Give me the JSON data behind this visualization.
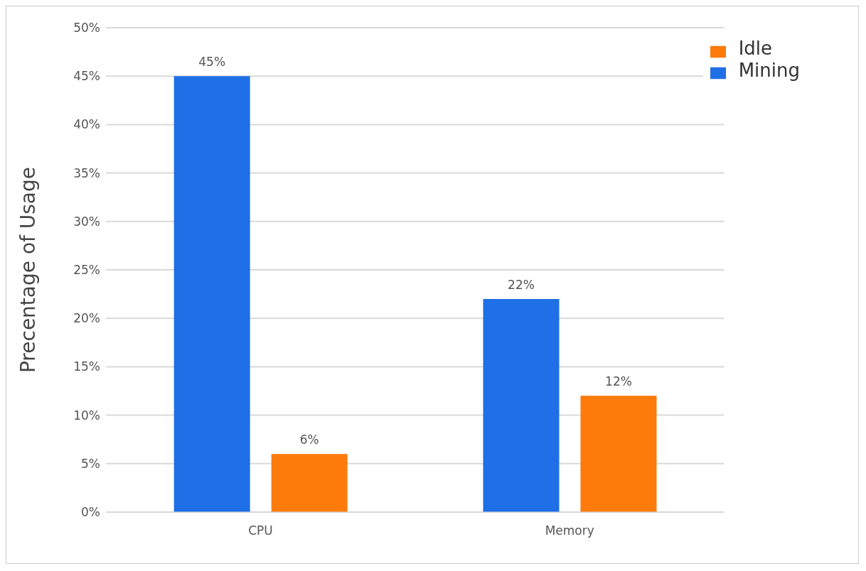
{
  "chart_data": {
    "type": "bar",
    "ylabel": "Precentage of Usage",
    "categories": [
      "CPU",
      "Memory"
    ],
    "series": [
      {
        "name": "Mining",
        "color": "#1f6fe6",
        "values": [
          45,
          22
        ],
        "value_labels": [
          "45%",
          "22%"
        ]
      },
      {
        "name": "Idle",
        "color": "#fc7b0b",
        "values": [
          6,
          12
        ],
        "value_labels": [
          "6%",
          "12%"
        ]
      }
    ],
    "ylim": [
      0,
      50
    ],
    "yticks": [
      {
        "value": 0,
        "label": "0%"
      },
      {
        "value": 5,
        "label": "5%"
      },
      {
        "value": 10,
        "label": "10%"
      },
      {
        "value": 15,
        "label": "15%"
      },
      {
        "value": 20,
        "label": "20%"
      },
      {
        "value": 25,
        "label": "25%"
      },
      {
        "value": 30,
        "label": "30%"
      },
      {
        "value": 35,
        "label": "35%"
      },
      {
        "value": 40,
        "label": "40%"
      },
      {
        "value": 45,
        "label": "45%"
      },
      {
        "value": 50,
        "label": "50%"
      }
    ],
    "grid": "y",
    "legend": "top right"
  }
}
